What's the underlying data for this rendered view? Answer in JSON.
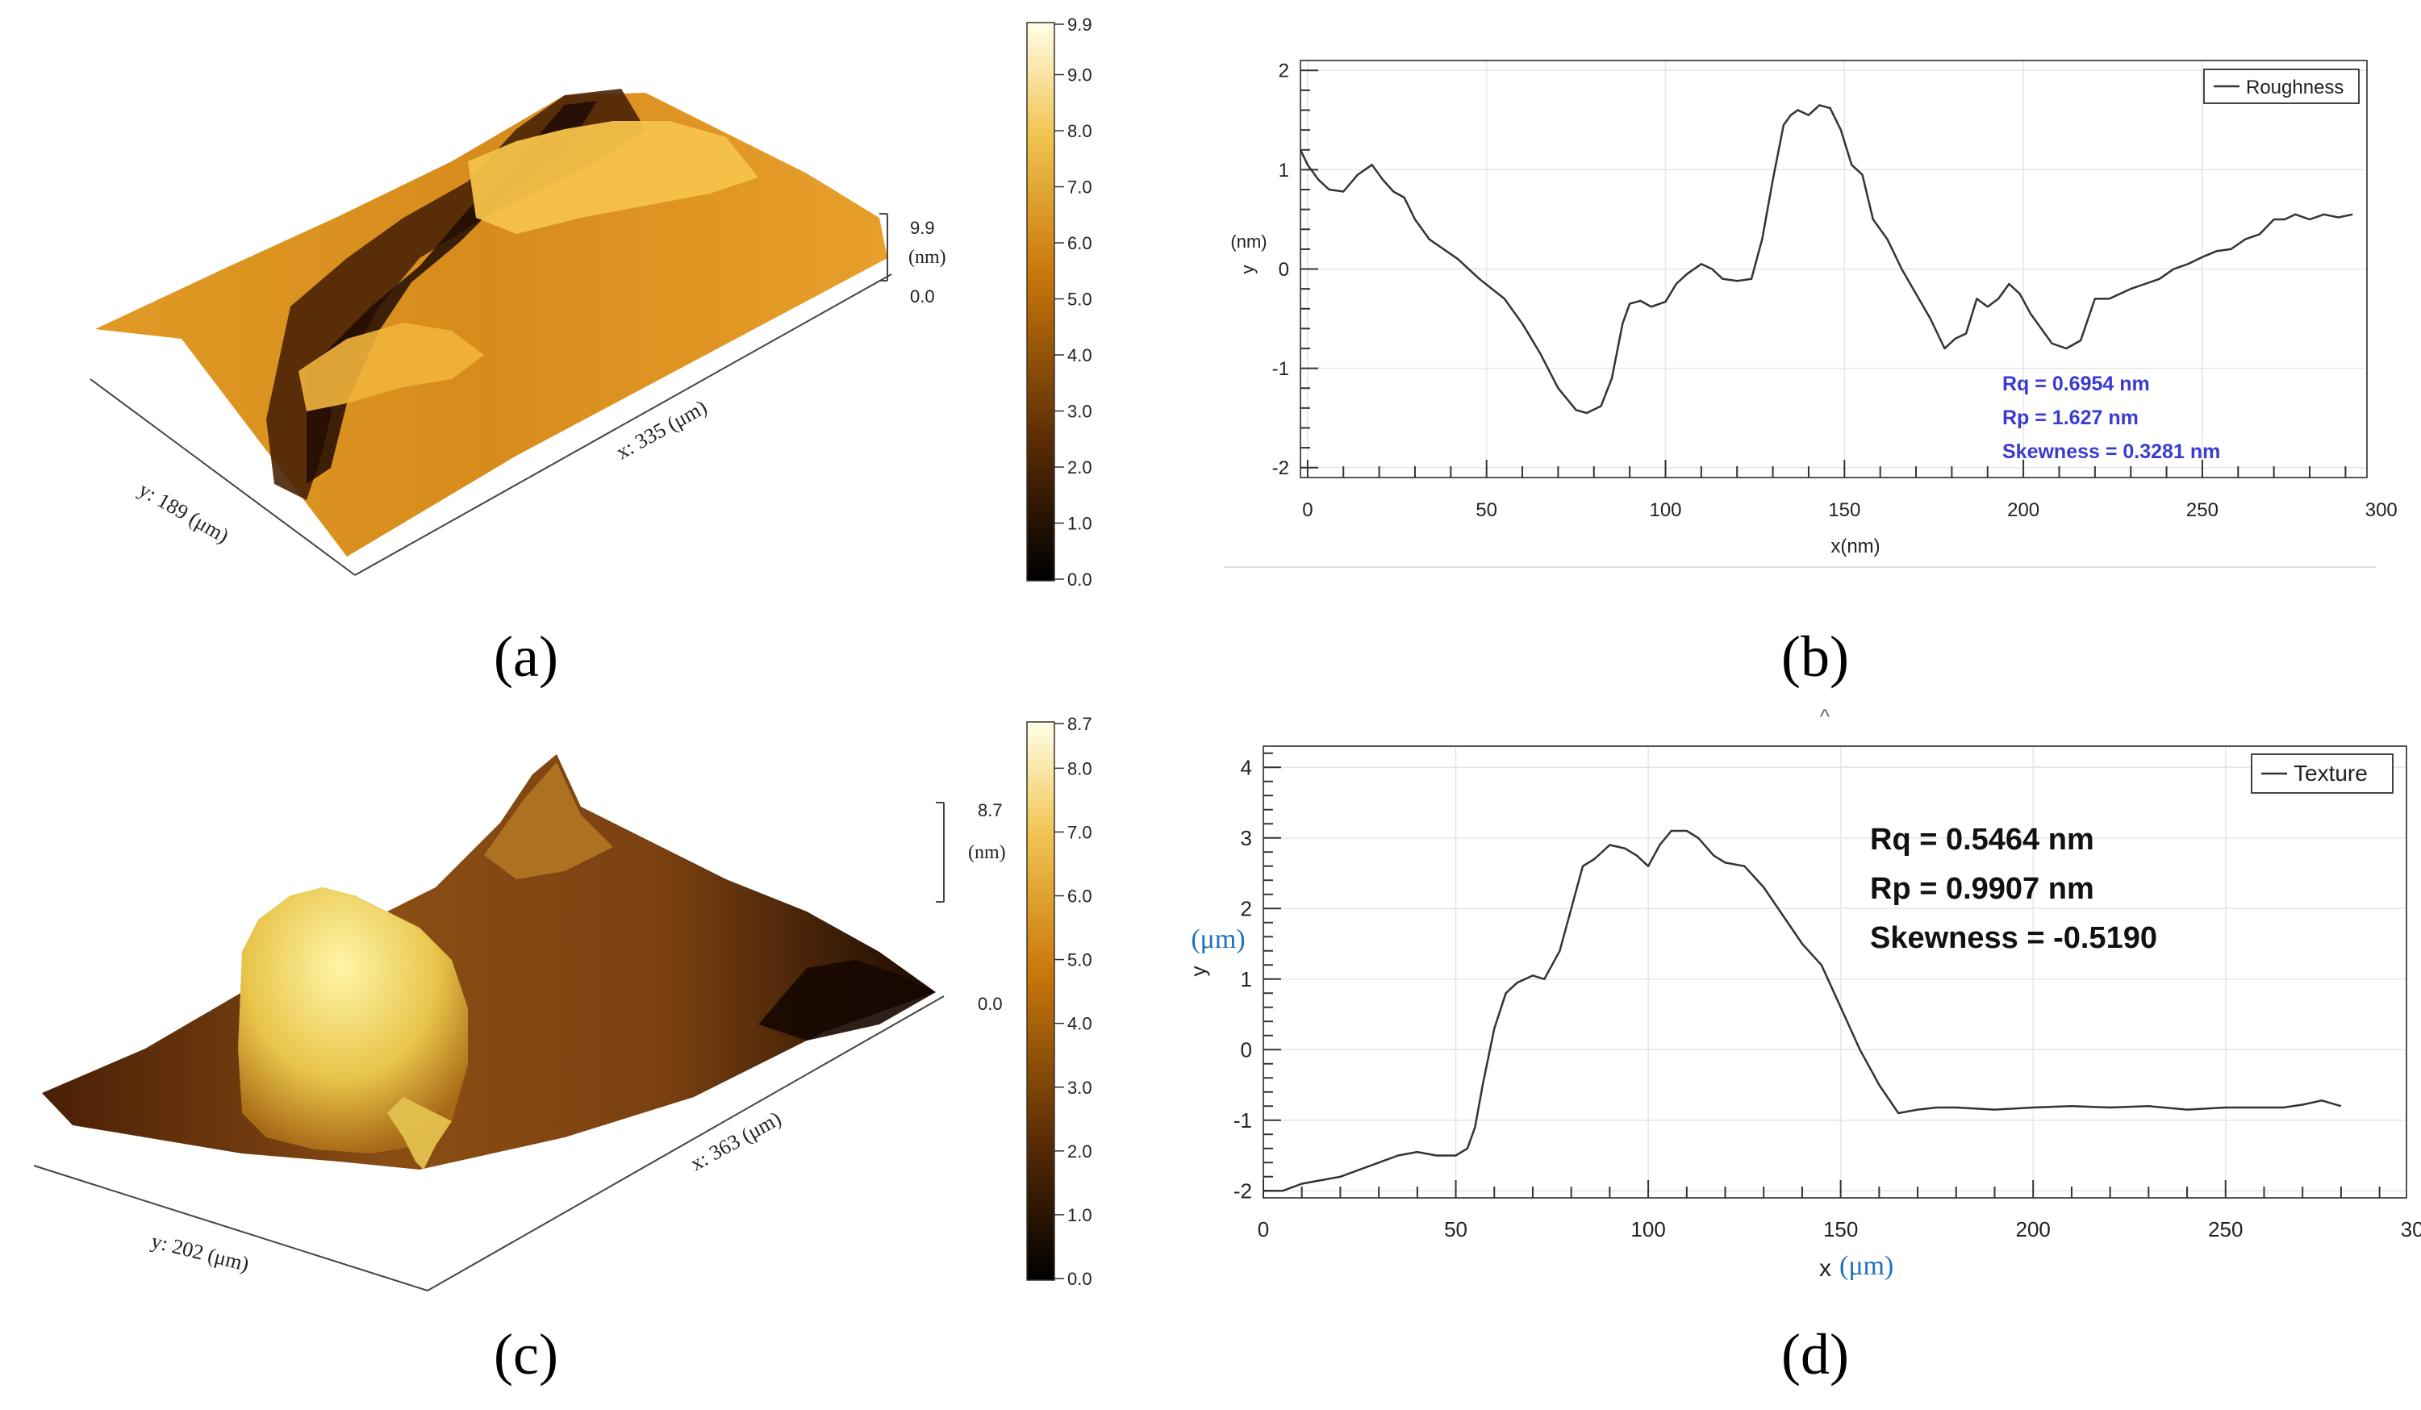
{
  "panel_labels": [
    "(a)",
    "(b)",
    "(c)",
    "(d)"
  ],
  "colors": {
    "afm_dark": "#000000",
    "afm_mid": "#c8780a",
    "afm_light": "#ffffe0",
    "line": "#333333",
    "stats_b": "#3b3bd0",
    "axis_unit_d": "#1e6fbf",
    "grid": "#e6e6e6"
  },
  "surface_a": {
    "x_label": "x: 335 (μm)",
    "y_label": "y: 189 (μm)",
    "z_max": "9.9",
    "z_unit": "(nm)",
    "z_min": "0.0"
  },
  "colorbar_a": {
    "ticks": [
      "9.9",
      "9.0",
      "8.0",
      "7.0",
      "6.0",
      "5.0",
      "4.0",
      "3.0",
      "2.0",
      "1.0",
      "0.0"
    ]
  },
  "surface_c": {
    "x_label": "x: 363 (μm)",
    "y_label": "y: 202 (μm)",
    "z_max": "8.7",
    "z_unit": "(nm)",
    "z_min": "0.0"
  },
  "colorbar_c": {
    "ticks": [
      "8.7",
      "8.0",
      "7.0",
      "6.0",
      "5.0",
      "4.0",
      "3.0",
      "2.0",
      "1.0",
      "0.0"
    ]
  },
  "chart_data": [
    {
      "type": "line",
      "panel": "b",
      "legend": "Roughness",
      "xlabel": "x(nm)",
      "ylabel_unit": "(nm)",
      "ylabel_axis": "y",
      "xlim": [
        -2,
        296
      ],
      "ylim": [
        -2.1,
        2.1
      ],
      "xticks": [
        0,
        50,
        100,
        150,
        200,
        250,
        300
      ],
      "yticks": [
        2,
        1,
        0,
        -1,
        -2
      ],
      "stats": [
        "Rq = 0.6954 nm",
        "Rp = 1.627 nm",
        "Skewness = 0.3281 nm"
      ],
      "x": [
        -2,
        0,
        3,
        6,
        10,
        14,
        18,
        21,
        24,
        27,
        30,
        34,
        38,
        42,
        48,
        55,
        60,
        65,
        70,
        75,
        78,
        82,
        85,
        88,
        90,
        93,
        96,
        100,
        103,
        106,
        110,
        113,
        116,
        120,
        124,
        127,
        130,
        133,
        135,
        137,
        140,
        143,
        146,
        149,
        152,
        155,
        158,
        162,
        166,
        170,
        174,
        178,
        181,
        184,
        187,
        190,
        193,
        196,
        199,
        202,
        205,
        208,
        212,
        216,
        220,
        224,
        227,
        230,
        234,
        238,
        242,
        246,
        250,
        254,
        258,
        262,
        266,
        270,
        273,
        276,
        280,
        284,
        288,
        292
      ],
      "y": [
        1.2,
        1.05,
        0.9,
        0.8,
        0.78,
        0.95,
        1.05,
        0.9,
        0.78,
        0.72,
        0.5,
        0.3,
        0.2,
        0.1,
        -0.1,
        -0.3,
        -0.55,
        -0.85,
        -1.2,
        -1.42,
        -1.45,
        -1.38,
        -1.1,
        -0.55,
        -0.35,
        -0.32,
        -0.38,
        -0.33,
        -0.15,
        -0.05,
        0.05,
        0.0,
        -0.1,
        -0.12,
        -0.1,
        0.3,
        0.9,
        1.45,
        1.55,
        1.6,
        1.55,
        1.65,
        1.62,
        1.4,
        1.05,
        0.95,
        0.5,
        0.3,
        0.0,
        -0.25,
        -0.5,
        -0.8,
        -0.7,
        -0.65,
        -0.3,
        -0.38,
        -0.3,
        -0.15,
        -0.25,
        -0.45,
        -0.6,
        -0.75,
        -0.8,
        -0.72,
        -0.3,
        -0.3,
        -0.25,
        -0.2,
        -0.15,
        -0.1,
        0.0,
        0.05,
        0.12,
        0.18,
        0.2,
        0.3,
        0.35,
        0.5,
        0.5,
        0.55,
        0.5,
        0.55,
        0.52,
        0.55
      ]
    },
    {
      "type": "line",
      "panel": "d",
      "legend": "Texture",
      "xlabel": "x",
      "xlabel_unit": "(μm)",
      "ylabel_unit": "(μm)",
      "ylabel_axis": "y",
      "xlim": [
        0,
        297
      ],
      "ylim": [
        -2.1,
        4.3
      ],
      "xticks": [
        0,
        50,
        100,
        150,
        200,
        250,
        300
      ],
      "yticks": [
        4,
        3,
        2,
        1,
        0,
        -1,
        -2
      ],
      "stats": [
        "Rq = 0.5464 nm",
        "Rp = 0.9907 nm",
        "Skewness = -0.5190"
      ],
      "x": [
        0,
        5,
        10,
        15,
        20,
        25,
        30,
        35,
        40,
        45,
        50,
        53,
        55,
        57,
        60,
        63,
        66,
        70,
        73,
        77,
        80,
        83,
        86,
        90,
        94,
        97,
        100,
        103,
        106,
        110,
        113,
        117,
        120,
        125,
        130,
        135,
        140,
        145,
        150,
        155,
        160,
        165,
        170,
        175,
        180,
        190,
        200,
        210,
        220,
        230,
        240,
        250,
        260,
        265,
        270,
        275,
        280
      ],
      "y": [
        -2.0,
        -2.0,
        -1.9,
        -1.85,
        -1.8,
        -1.7,
        -1.6,
        -1.5,
        -1.45,
        -1.5,
        -1.5,
        -1.4,
        -1.1,
        -0.5,
        0.3,
        0.8,
        0.95,
        1.05,
        1.0,
        1.4,
        2.0,
        2.6,
        2.7,
        2.9,
        2.85,
        2.75,
        2.6,
        2.9,
        3.1,
        3.1,
        3.0,
        2.75,
        2.65,
        2.6,
        2.3,
        1.9,
        1.5,
        1.2,
        0.6,
        0.0,
        -0.5,
        -0.9,
        -0.85,
        -0.82,
        -0.82,
        -0.85,
        -0.82,
        -0.8,
        -0.82,
        -0.8,
        -0.85,
        -0.82,
        -0.82,
        -0.82,
        -0.78,
        -0.72,
        -0.8
      ]
    }
  ]
}
